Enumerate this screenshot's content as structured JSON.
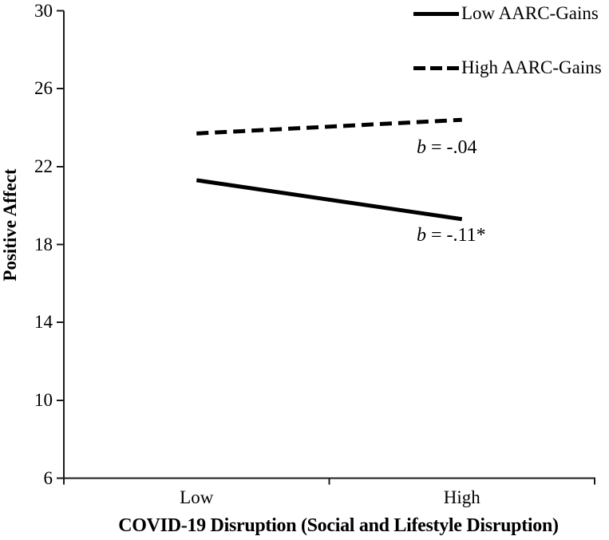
{
  "figure": {
    "background": "#ffffff"
  },
  "chart_data": {
    "type": "line",
    "title": "",
    "x_categories": [
      "Low",
      "High"
    ],
    "series": [
      {
        "name": "Low AARC-Gains",
        "line_style": "solid",
        "color": "#000000",
        "values": [
          21.3,
          19.3
        ],
        "annotation": {
          "symbol": "b",
          "text": " = -.11*"
        }
      },
      {
        "name": "High AARC-Gains",
        "line_style": "dashed",
        "color": "#000000",
        "values": [
          23.7,
          24.4
        ],
        "annotation": {
          "symbol": "b",
          "text": " = -.04"
        }
      }
    ],
    "xlabel": "COVID-19 Disruption (Social and Lifestyle Disruption)",
    "ylabel": "Positive Affect",
    "ylim": [
      6,
      30
    ],
    "yticks": [
      6,
      10,
      14,
      18,
      22,
      26,
      30
    ],
    "legend_position": "top-right",
    "grid": false,
    "axis_color": "#1a1a1a"
  }
}
